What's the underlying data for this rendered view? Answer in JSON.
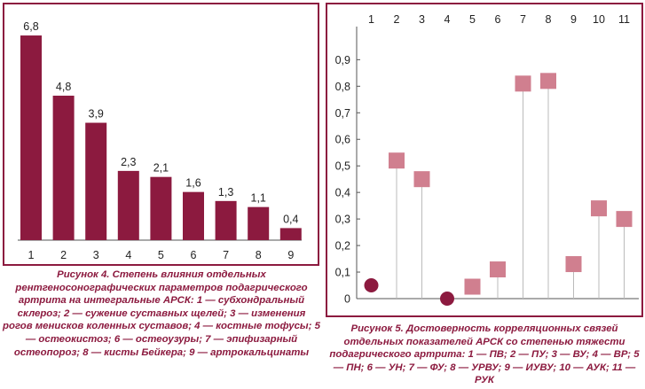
{
  "chart_data": [
    {
      "type": "bar",
      "categories": [
        "1",
        "2",
        "3",
        "4",
        "5",
        "6",
        "7",
        "8",
        "9"
      ],
      "values": [
        6.8,
        4.8,
        3.9,
        2.3,
        2.1,
        1.6,
        1.3,
        1.1,
        0.4
      ],
      "data_labels": [
        "6,8",
        "4,8",
        "3,9",
        "2,3",
        "2,1",
        "1,6",
        "1,3",
        "1,1",
        "0,4"
      ],
      "ylim": [
        0,
        7
      ],
      "grid": false,
      "bar_color": "#8c1a3f"
    },
    {
      "type": "scatter",
      "x": [
        "1",
        "2",
        "3",
        "4",
        "5",
        "6",
        "7",
        "8",
        "9",
        "10",
        "11"
      ],
      "values": [
        0.05,
        0.52,
        0.45,
        0.0,
        0.045,
        0.11,
        0.81,
        0.82,
        0.13,
        0.34,
        0.3
      ],
      "markers": [
        "circle",
        "square",
        "square",
        "circle",
        "square",
        "square",
        "square",
        "square",
        "square",
        "square",
        "square"
      ],
      "ylim": [
        0,
        1.0
      ],
      "yticks": [
        "0",
        "0,1",
        "0,2",
        "0,3",
        "0,4",
        "0,5",
        "0,6",
        "0,7",
        "0,8",
        "0,9"
      ],
      "grid": false,
      "circle_color": "#8c1a3f",
      "square_color": "#d07f8f",
      "stem_color": "#bbbbbb"
    }
  ],
  "captions": {
    "fig4": "Рисунок 4. Степень влияния отдельных рентгеносонографических параметров подагрического артрита на интегральные АРСК: 1 — субхондральный склероз; 2 — сужение суставных щелей; 3 — изменения рогов менисков коленных суставов; 4 — костные тофусы; 5 — остеокистоз; 6 — остеоузуры; 7 — эпифизарный остеопороз; 8 — кисты Бейкера; 9 — артрокальцинаты",
    "fig5": "Рисунок 5. Достоверность корреляционных связей отдельных показателей АРСК со степенью тяжести подагрического артрита: 1 — ПВ; 2 — ПУ; 3 — ВУ; 4 — ВР; 5 — ПН; 6 — УН; 7 — ФУ; 8 — УРВУ; 9 — ИУВУ; 10 — АУК; 11 — РУК"
  }
}
